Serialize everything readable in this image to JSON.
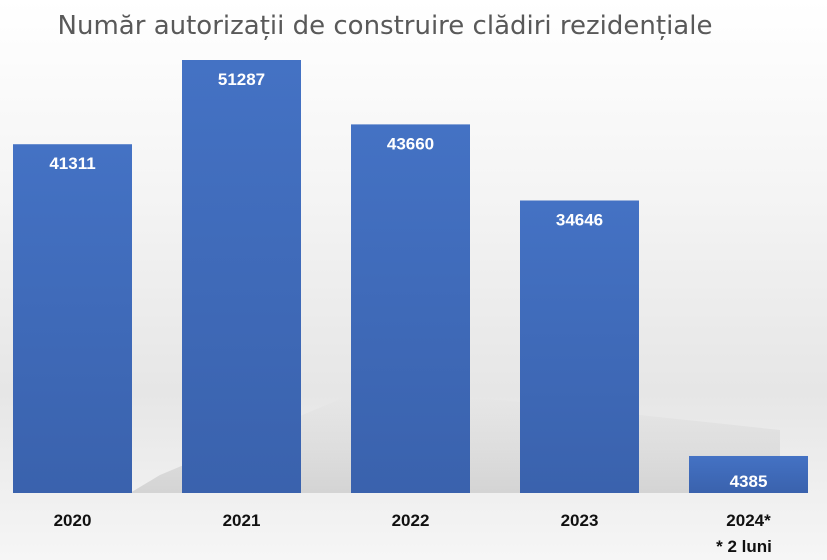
{
  "chart_data": {
    "type": "bar",
    "title": "Număr autorizații de construire clădiri rezidențiale",
    "categories": [
      "2020",
      "2021",
      "2022",
      "2023",
      "2024*"
    ],
    "values": [
      41311,
      51287,
      43660,
      34646,
      4385
    ],
    "data_labels": [
      "41311",
      "51287",
      "43660",
      "34646",
      "4385"
    ],
    "note": "* 2 luni",
    "bar_color": "#4472c4",
    "bar_color_dark": "#2f5597",
    "grid": false,
    "legend": "none"
  }
}
